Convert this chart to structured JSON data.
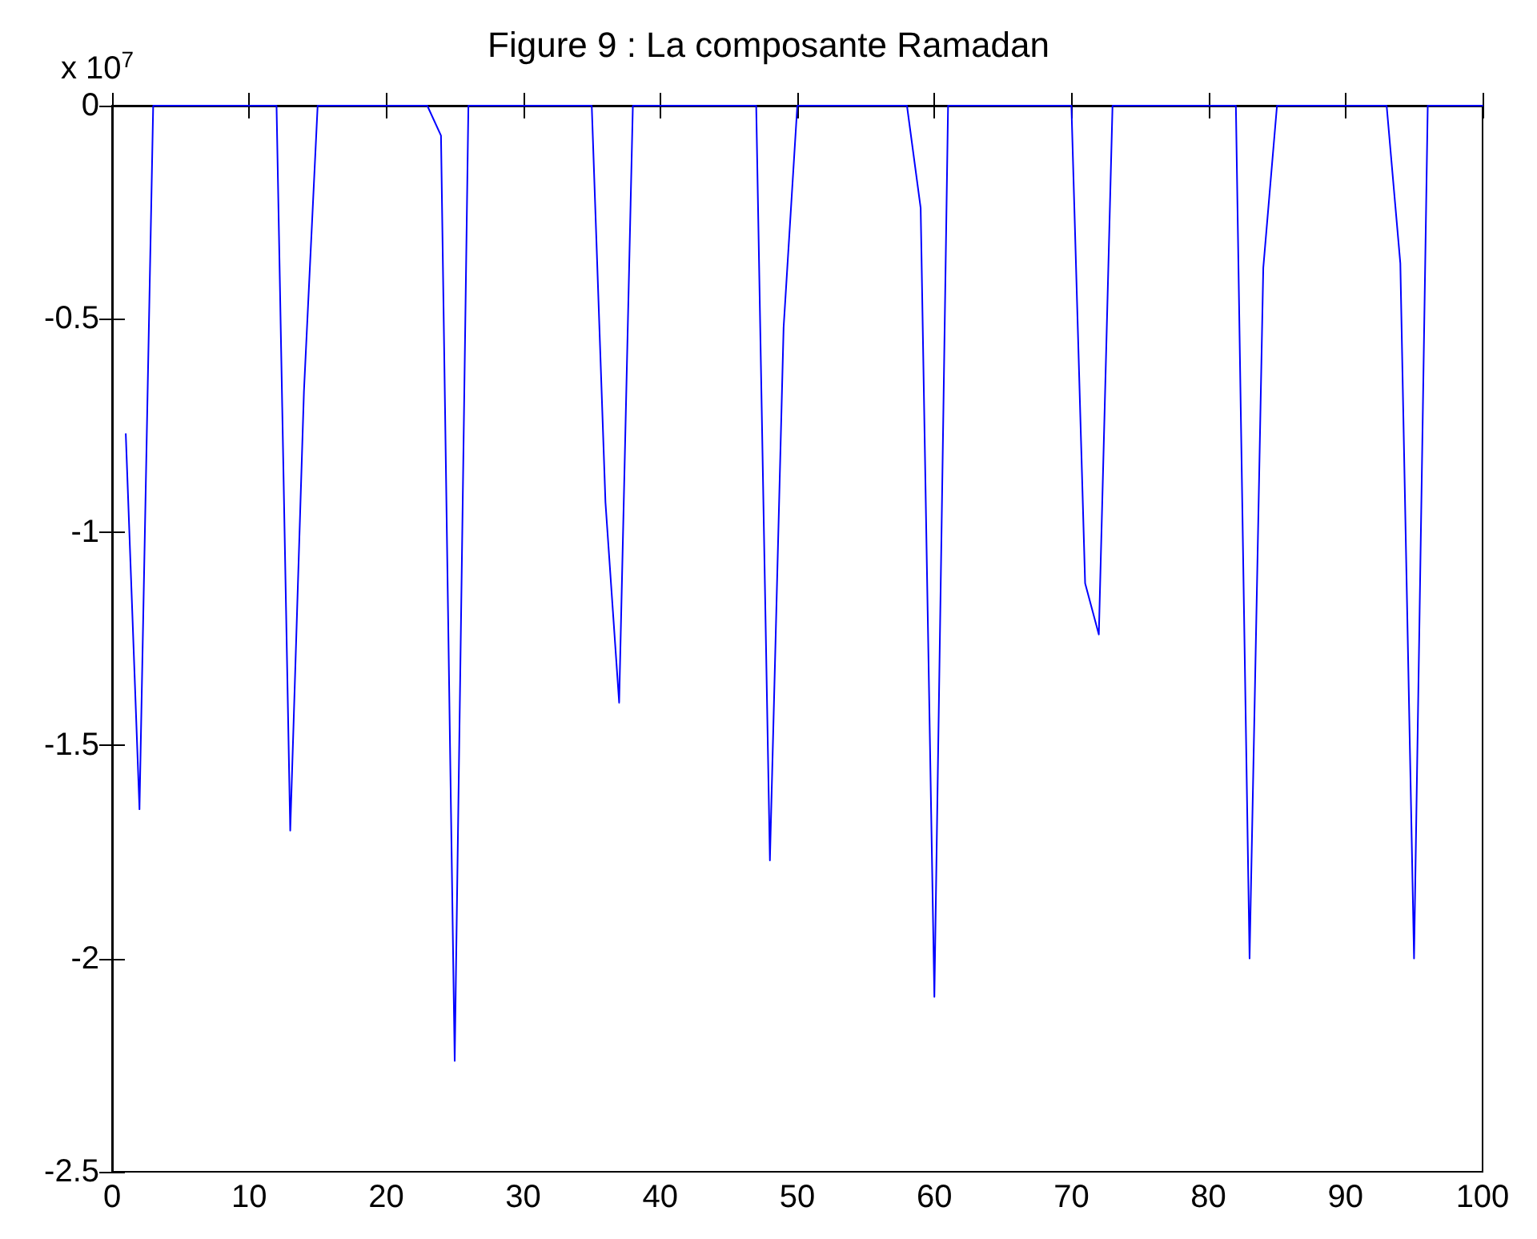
{
  "chart_data": {
    "type": "line",
    "title": "Figure 9 : La composante Ramadan",
    "annotations": [
      "x 10$^{7}$"
    ],
    "x": [
      1,
      2,
      3,
      4,
      5,
      6,
      7,
      8,
      9,
      10,
      11,
      12,
      13,
      14,
      15,
      16,
      17,
      18,
      19,
      20,
      21,
      22,
      23,
      24,
      25,
      26,
      27,
      28,
      29,
      30,
      31,
      32,
      33,
      34,
      35,
      36,
      37,
      38,
      39,
      40,
      41,
      42,
      43,
      44,
      45,
      46,
      47,
      48,
      49,
      50,
      51,
      52,
      53,
      54,
      55,
      56,
      57,
      58,
      59,
      60,
      61,
      62,
      63,
      64,
      65,
      66,
      67,
      68,
      69,
      70,
      71,
      72,
      73,
      74,
      75,
      76,
      77,
      78,
      79,
      80,
      81,
      82,
      83,
      84,
      85,
      86,
      87,
      88,
      89,
      90,
      91,
      92,
      93,
      94,
      95,
      96,
      97,
      98,
      99,
      100
    ],
    "series": [
      {
        "color": "#0000ff",
        "values": [
          -0.77,
          -1.65,
          0,
          0,
          0,
          0,
          0,
          0,
          0,
          0,
          0,
          0,
          -1.7,
          -0.67,
          0,
          0,
          0,
          0,
          0,
          0,
          0,
          0,
          0,
          -0.07,
          -2.24,
          0,
          0,
          0,
          0,
          0,
          0,
          0,
          0,
          0,
          0,
          -0.93,
          -1.4,
          0,
          0,
          0,
          0,
          0,
          0,
          0,
          0,
          0,
          0,
          -1.77,
          -0.52,
          0,
          0,
          0,
          0,
          0,
          0,
          0,
          0,
          0,
          -0.24,
          -2.09,
          0,
          0,
          0,
          0,
          0,
          0,
          0,
          0,
          0,
          0,
          -1.12,
          -1.24,
          0,
          0,
          0,
          0,
          0,
          0,
          0,
          0,
          0,
          0,
          -2,
          -0.38,
          0,
          0,
          0,
          0,
          0,
          0,
          0,
          0,
          0,
          -0.37,
          -2,
          0,
          0,
          0,
          0,
          0
        ]
      }
    ],
    "xlim": [
      0,
      100
    ],
    "xticks": [
      0,
      10,
      20,
      30,
      40,
      50,
      60,
      70,
      80,
      90,
      100
    ],
    "ylim": [
      -2.5,
      0
    ],
    "yticks": [
      -2.5,
      -2,
      -1.5,
      -1,
      -0.5,
      0
    ],
    "grid": false,
    "marker": "none",
    "line_style": "solid"
  }
}
